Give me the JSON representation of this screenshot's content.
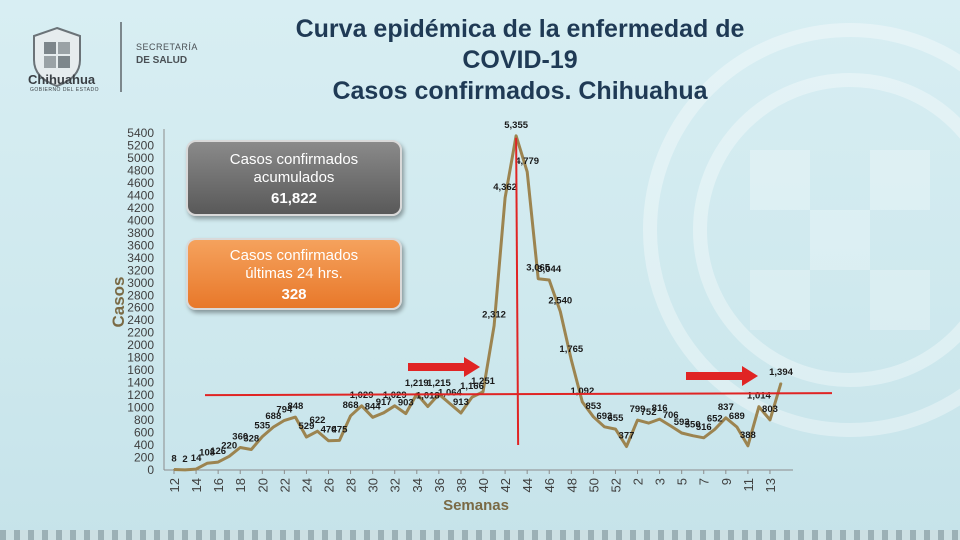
{
  "header": {
    "logo_text": "Chihuahua",
    "logo_subtext": "GOBIERNO DEL ESTADO",
    "dept_line1": "SECRETARÍA",
    "dept_line2": "DE SALUD"
  },
  "title_lines": [
    "Curva epidémica de la enfermedad de",
    "COVID-19",
    "Casos confirmados. Chihuahua"
  ],
  "box_acumulados": {
    "label_line1": "Casos confirmados",
    "label_line2": "acumulados",
    "value": "61,822",
    "color": "#6e6e6e"
  },
  "box_24h": {
    "label_line1": "Casos confirmados",
    "label_line2": "últimas 24 hrs.",
    "value": "328",
    "color": "#f08c3c"
  },
  "chart_data": {
    "type": "line",
    "title": "Curva epidémica de la enfermedad de COVID-19 Casos confirmados. Chihuahua",
    "xlabel": "Semanas",
    "ylabel": "Casos",
    "ylim": [
      0,
      5400
    ],
    "yticks": [
      0,
      200,
      400,
      600,
      800,
      1000,
      1200,
      1400,
      1600,
      1800,
      2000,
      2200,
      2400,
      2600,
      2800,
      3000,
      3200,
      3400,
      3600,
      3800,
      4000,
      4200,
      4400,
      4600,
      4800,
      5000,
      5200,
      5400
    ],
    "x_tick_labels": [
      "12",
      "14",
      "16",
      "18",
      "20",
      "22",
      "24",
      "26",
      "28",
      "30",
      "32",
      "34",
      "36",
      "38",
      "40",
      "42",
      "44",
      "46",
      "48",
      "50",
      "52",
      "2",
      "3",
      "5",
      "7",
      "9",
      "11",
      "13"
    ],
    "weeks": [
      "12",
      "13",
      "14",
      "15",
      "16",
      "17",
      "18",
      "19",
      "20",
      "21",
      "22",
      "23",
      "24",
      "25",
      "26",
      "27",
      "28",
      "29",
      "30",
      "31",
      "32",
      "33",
      "34",
      "35",
      "36",
      "37",
      "38",
      "39",
      "40",
      "41",
      "42",
      "43",
      "44",
      "45",
      "46",
      "47",
      "48",
      "49",
      "50",
      "51",
      "52",
      "53",
      "1",
      "2",
      "3",
      "4",
      "5",
      "6",
      "7",
      "8",
      "9",
      "10",
      "11",
      "12",
      "13",
      "14"
    ],
    "values": [
      8,
      2,
      14,
      108,
      126,
      220,
      360,
      328,
      535,
      688,
      794,
      848,
      529,
      622,
      470,
      475,
      868,
      1029,
      844,
      917,
      1029,
      903,
      1219,
      1018,
      1215,
      1064,
      913,
      1166,
      1251,
      2312,
      4362,
      5355,
      4779,
      3065,
      3044,
      2540,
      1765,
      1092,
      853,
      693,
      655,
      377,
      799,
      752,
      816,
      706,
      593,
      550,
      516,
      652,
      837,
      689,
      388,
      1014,
      803,
      1394
    ],
    "labels": [
      "8",
      "2",
      "14",
      "108",
      "126",
      "220",
      "360",
      "328",
      "535",
      "688",
      "794",
      "848",
      "529",
      "622",
      "470",
      "475",
      "868",
      "1,029",
      "844",
      "917",
      "1,029",
      "903",
      "1,219",
      "1,018",
      "1,215",
      "1,064",
      "913",
      "1,166",
      "1,251",
      "2,312",
      "4,362",
      "5,355",
      "4,779",
      "3,065",
      "3,044",
      "2,540",
      "1,765",
      "1,092",
      "853",
      "693",
      "655",
      "377",
      "799",
      "752",
      "816",
      "706",
      "593",
      "550",
      "516",
      "652",
      "837",
      "689",
      "388",
      "1,014",
      "803",
      "1,394"
    ],
    "line_color": "#9c8450",
    "reference_line_y": 1200,
    "reference_line_color": "#e02424",
    "grid": false,
    "legend": "none"
  }
}
